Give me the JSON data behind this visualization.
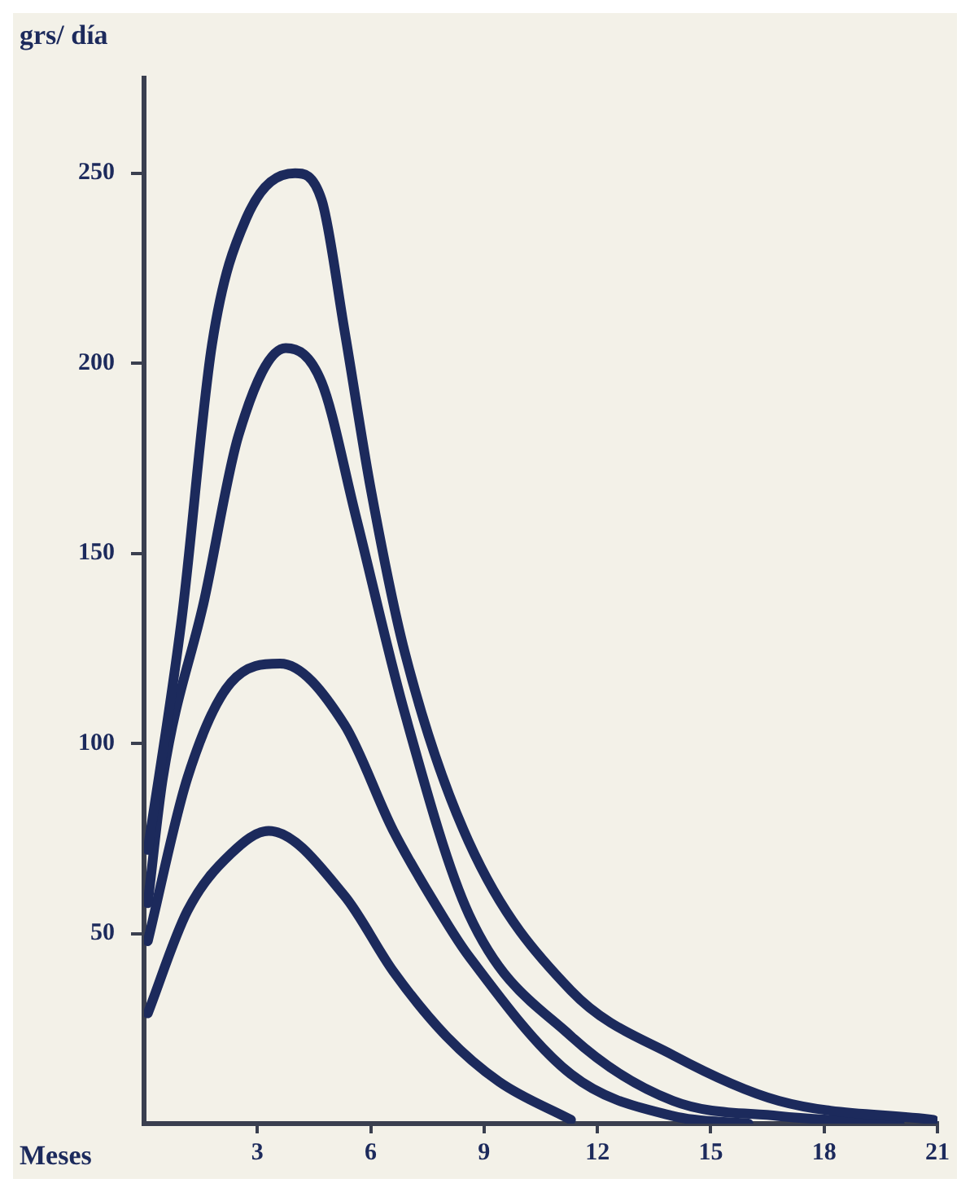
{
  "chart_data": {
    "type": "line",
    "xlabel": "Meses",
    "ylabel": "grs/ día",
    "xlim": [
      0,
      21
    ],
    "xticks": [
      3,
      6,
      9,
      12,
      15,
      18,
      21
    ],
    "ylim": [
      0,
      275
    ],
    "yticks": [
      50,
      100,
      150,
      200,
      250
    ],
    "grid": false,
    "legend": false,
    "marker": "none",
    "line_style": "solid",
    "series": [
      {
        "color": "#1c2a5c",
        "x": [
          0.1,
          1.0,
          1.8,
          2.7,
          4.0,
          4.7,
          5.3,
          6.0,
          6.9,
          8.6,
          11.3,
          14.0,
          16.8,
          20.9
        ],
        "values": [
          72,
          133,
          205,
          238,
          250,
          243,
          209,
          167,
          124,
          74,
          35,
          18,
          6,
          1
        ]
      },
      {
        "color": "#1c2a5c",
        "x": [
          0.1,
          0.5,
          1.6,
          2.5,
          3.75,
          4.7,
          5.6,
          6.9,
          8.6,
          11.3,
          14.0,
          16.8,
          20.0
        ],
        "values": [
          58,
          91,
          138,
          181,
          204,
          195,
          160,
          108,
          55,
          23,
          6,
          2,
          0
        ]
      },
      {
        "color": "#1c2a5c",
        "x": [
          0.1,
          1.15,
          2.3,
          3.6,
          5.3,
          6.6,
          8.0,
          8.6,
          11.3,
          14.0,
          16.0
        ],
        "values": [
          48,
          91,
          116,
          121,
          105,
          77,
          53,
          44,
          13,
          2,
          0
        ]
      },
      {
        "color": "#1c2a5c",
        "x": [
          0.1,
          1.15,
          2.3,
          3.3,
          5.3,
          6.6,
          8.0,
          9.4,
          11.3
        ],
        "values": [
          29,
          56,
          71,
          77,
          60,
          40,
          23,
          11,
          1
        ]
      }
    ]
  }
}
